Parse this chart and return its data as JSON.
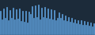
{
  "line_color": "#5b9bd5",
  "fill_color": "#5b9bd5",
  "background_color": "#1c2b3a",
  "edge_color": "#3a7bbf",
  "values": [
    70,
    45,
    75,
    50,
    80,
    42,
    72,
    48,
    78,
    44,
    74,
    46,
    76,
    40,
    70,
    38,
    68,
    36,
    66,
    60,
    82,
    50,
    84,
    52,
    86,
    44,
    78,
    52,
    80,
    48,
    76,
    46,
    74,
    44,
    72,
    42,
    50,
    65,
    48,
    60,
    42,
    55,
    40,
    52,
    38,
    50,
    36,
    45,
    34,
    43,
    32,
    42,
    30,
    40,
    28,
    38,
    26,
    36,
    24,
    34
  ],
  "ylim_min": 0,
  "ylim_max": 100,
  "bar_width": 0.85
}
